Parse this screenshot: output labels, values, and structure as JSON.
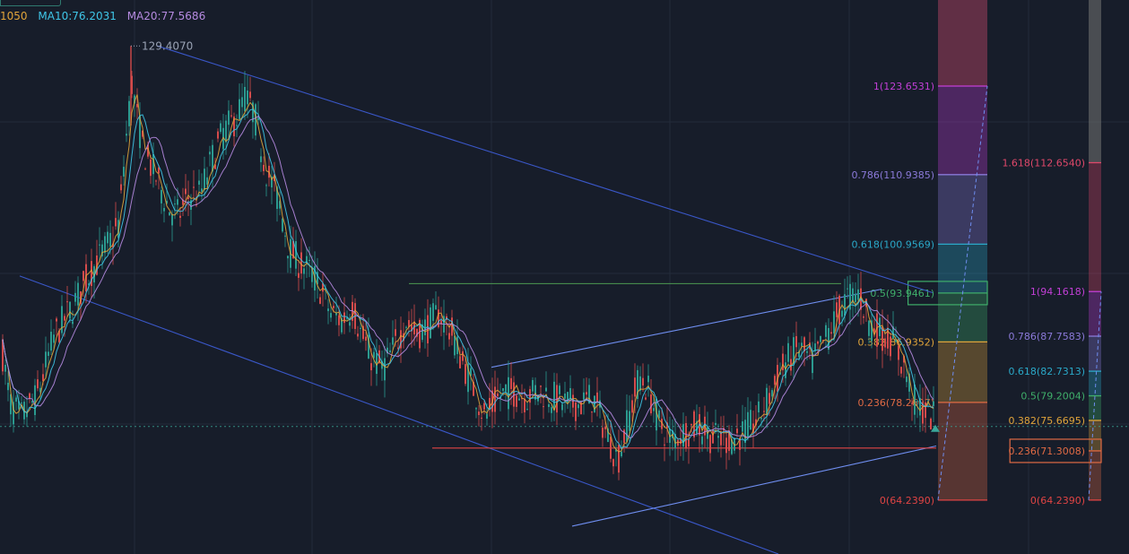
{
  "legend": {
    "ma5": "1050",
    "ma10": "MA10:76.2031",
    "ma20": "MA20:77.5686"
  },
  "colors": {
    "background": "#171d2a",
    "grid": "#232b3a",
    "up": "#d44b4b",
    "down": "#2b9a8f",
    "ma5": "#e0a43a",
    "ma10": "#3fc6e8",
    "ma20": "#b58ae0",
    "channel": "#3a57c8",
    "wedge": "#6f8ef0",
    "hline_green": "#4c9a52",
    "hline_red": "#e04444",
    "current_price": "#3aa89a"
  },
  "chart_data": {
    "type": "candlestick",
    "y_range": [
      56.5,
      136.0
    ],
    "peak_annotation": "129.4070",
    "ma_series": [
      {
        "name": "MA10:76.2031"
      },
      {
        "name": "MA20:77.5686"
      }
    ],
    "price_path": [
      [
        0,
        87
      ],
      [
        10,
        78
      ],
      [
        22,
        76
      ],
      [
        40,
        79
      ],
      [
        60,
        88
      ],
      [
        80,
        92
      ],
      [
        100,
        97
      ],
      [
        115,
        100
      ],
      [
        125,
        102
      ],
      [
        132,
        104
      ],
      [
        138,
        114
      ],
      [
        146,
        124
      ],
      [
        152,
        119
      ],
      [
        160,
        114
      ],
      [
        168,
        112
      ],
      [
        178,
        109
      ],
      [
        188,
        106
      ],
      [
        198,
        105
      ],
      [
        210,
        108
      ],
      [
        222,
        108
      ],
      [
        235,
        113
      ],
      [
        248,
        117
      ],
      [
        262,
        119
      ],
      [
        272,
        122
      ],
      [
        282,
        120
      ],
      [
        295,
        112
      ],
      [
        310,
        107
      ],
      [
        322,
        100
      ],
      [
        335,
        98
      ],
      [
        345,
        97
      ],
      [
        355,
        95
      ],
      [
        368,
        91
      ],
      [
        380,
        90
      ],
      [
        392,
        92
      ],
      [
        402,
        88
      ],
      [
        412,
        85
      ],
      [
        425,
        83
      ],
      [
        438,
        86
      ],
      [
        452,
        90
      ],
      [
        462,
        88
      ],
      [
        475,
        89
      ],
      [
        488,
        91
      ],
      [
        500,
        89
      ],
      [
        515,
        84
      ],
      [
        528,
        80
      ],
      [
        540,
        76
      ],
      [
        555,
        79
      ],
      [
        570,
        80
      ],
      [
        585,
        79
      ],
      [
        600,
        80
      ],
      [
        615,
        79
      ],
      [
        630,
        78
      ],
      [
        645,
        78
      ],
      [
        660,
        79
      ],
      [
        675,
        74
      ],
      [
        688,
        70
      ],
      [
        700,
        76
      ],
      [
        712,
        82
      ],
      [
        722,
        80
      ],
      [
        735,
        75
      ],
      [
        748,
        73
      ],
      [
        762,
        74
      ],
      [
        778,
        75
      ],
      [
        795,
        73
      ],
      [
        812,
        73
      ],
      [
        830,
        74
      ],
      [
        845,
        76
      ],
      [
        860,
        80
      ],
      [
        875,
        84
      ],
      [
        890,
        86
      ],
      [
        905,
        84
      ],
      [
        918,
        87
      ],
      [
        930,
        90
      ],
      [
        942,
        93
      ],
      [
        956,
        94
      ],
      [
        968,
        90
      ],
      [
        982,
        88
      ],
      [
        995,
        87
      ],
      [
        1008,
        83
      ],
      [
        1020,
        78
      ],
      [
        1030,
        77
      ],
      [
        1040,
        76
      ]
    ],
    "wick_anchor_x": 1040,
    "wick_anchor_y": 74.8,
    "trendlines": [
      {
        "from": [
          176,
          129.4
        ],
        "to": [
          1040,
          94.0
        ],
        "style": "channel"
      },
      {
        "from": [
          22,
          96.4
        ],
        "to": [
          868,
          56.5
        ],
        "style": "channel"
      },
      {
        "from": [
          548,
          83.3
        ],
        "to": [
          983,
          94.5
        ],
        "style": "wedge"
      },
      {
        "from": [
          638,
          60.5
        ],
        "to": [
          1044,
          72.0
        ],
        "style": "wedge"
      },
      {
        "from": [
          456,
          95.3
        ],
        "to": [
          938,
          95.3
        ],
        "style": "hline_green"
      },
      {
        "from": [
          482,
          71.7
        ],
        "to": [
          1044,
          71.7
        ],
        "style": "hline_red"
      }
    ],
    "fib_retracements": [
      {
        "name": "fib-1",
        "x_range": [
          1046,
          1101
        ],
        "levels": [
          {
            "ratio": "1",
            "label": "1(123.6531)",
            "value": 123.6531,
            "color": "#c23fd6"
          },
          {
            "ratio": "0.786",
            "label": "0.786(110.9385)",
            "value": 110.9385,
            "color": "#8a79d8"
          },
          {
            "ratio": "0.618",
            "label": "0.618(100.9569)",
            "value": 100.9569,
            "color": "#2aa8c8"
          },
          {
            "ratio": "0.5",
            "label": "0.5(93.9461)",
            "value": 93.9461,
            "color": "#3fae6a"
          },
          {
            "ratio": "0.382",
            "label": "0.382(86.9352)",
            "value": 86.9352,
            "color": "#e0a43a"
          },
          {
            "ratio": "0.236",
            "label": "0.236(78.2607)",
            "value": 78.2607,
            "color": "#e06a44"
          },
          {
            "ratio": "0",
            "label": "0(64.2390)",
            "value": 64.239,
            "color": "#e04444"
          }
        ],
        "extra_top": "#8f3a55",
        "highlight_label": "0.5(93.9461)"
      },
      {
        "name": "fib-2",
        "x_range": [
          1214,
          1228
        ],
        "levels": [
          {
            "ratio": "1.618",
            "label": "1.618(112.6540)",
            "value": 112.654,
            "color": "#e0486a"
          },
          {
            "ratio": "1",
            "label": "1(94.1618)",
            "value": 94.1618,
            "color": "#c23fd6"
          },
          {
            "ratio": "0.786",
            "label": "0.786(87.7583)",
            "value": 87.7583,
            "color": "#8a79d8"
          },
          {
            "ratio": "0.618",
            "label": "0.618(82.7313)",
            "value": 82.7313,
            "color": "#2aa8c8"
          },
          {
            "ratio": "0.5",
            "label": "0.5(79.2004)",
            "value": 79.2004,
            "color": "#3fae6a"
          },
          {
            "ratio": "0.382",
            "label": "0.382(75.6695)",
            "value": 75.6695,
            "color": "#e0a43a"
          },
          {
            "ratio": "0.236",
            "label": "0.236(71.3008)",
            "value": 71.3008,
            "color": "#e06a44"
          },
          {
            "ratio": "0",
            "label": "0(64.2390)",
            "value": 64.239,
            "color": "#e04444"
          }
        ],
        "extra_top": "#6b6b6b",
        "highlight_label": "0.236(71.3008)"
      }
    ],
    "current_price": 74.8
  }
}
